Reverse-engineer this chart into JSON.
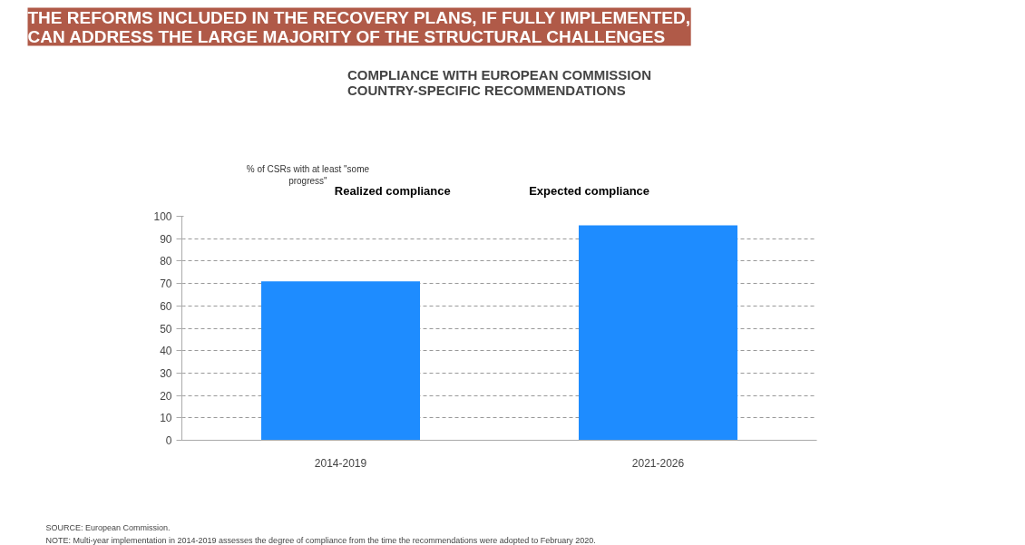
{
  "chart_data": {
    "type": "bar",
    "title": "THE REFORMS INCLUDED IN THE RECOVERY PLANS, IF FULLY IMPLEMENTED,\nCAN ADDRESS THE LARGE MAJORITY OF THE STRUCTURAL CHALLENGES",
    "subtitle": "COMPLIANCE WITH EUROPEAN COMMISSION\nCOUNTRY-SPECIFIC RECOMMENDATIONS",
    "ylabel": "% of CSRs with at least \"some progress\"",
    "categories": [
      "2014-2019",
      "2021-2026"
    ],
    "values": [
      71,
      96
    ],
    "color": "#1e8cff",
    "ylim": [
      0,
      100
    ],
    "yticks": [
      0,
      10,
      20,
      30,
      40,
      50,
      60,
      70,
      80,
      90,
      100
    ],
    "grid": "y",
    "annotations": [
      "Realized compliance",
      "Expected compliance",
      "SOURCE: European Commission.",
      "NOTE: Multi-year implementation in 2014-2019 assesses the degree of compliance from the time the recommendations were adopted to February 2020."
    ]
  }
}
